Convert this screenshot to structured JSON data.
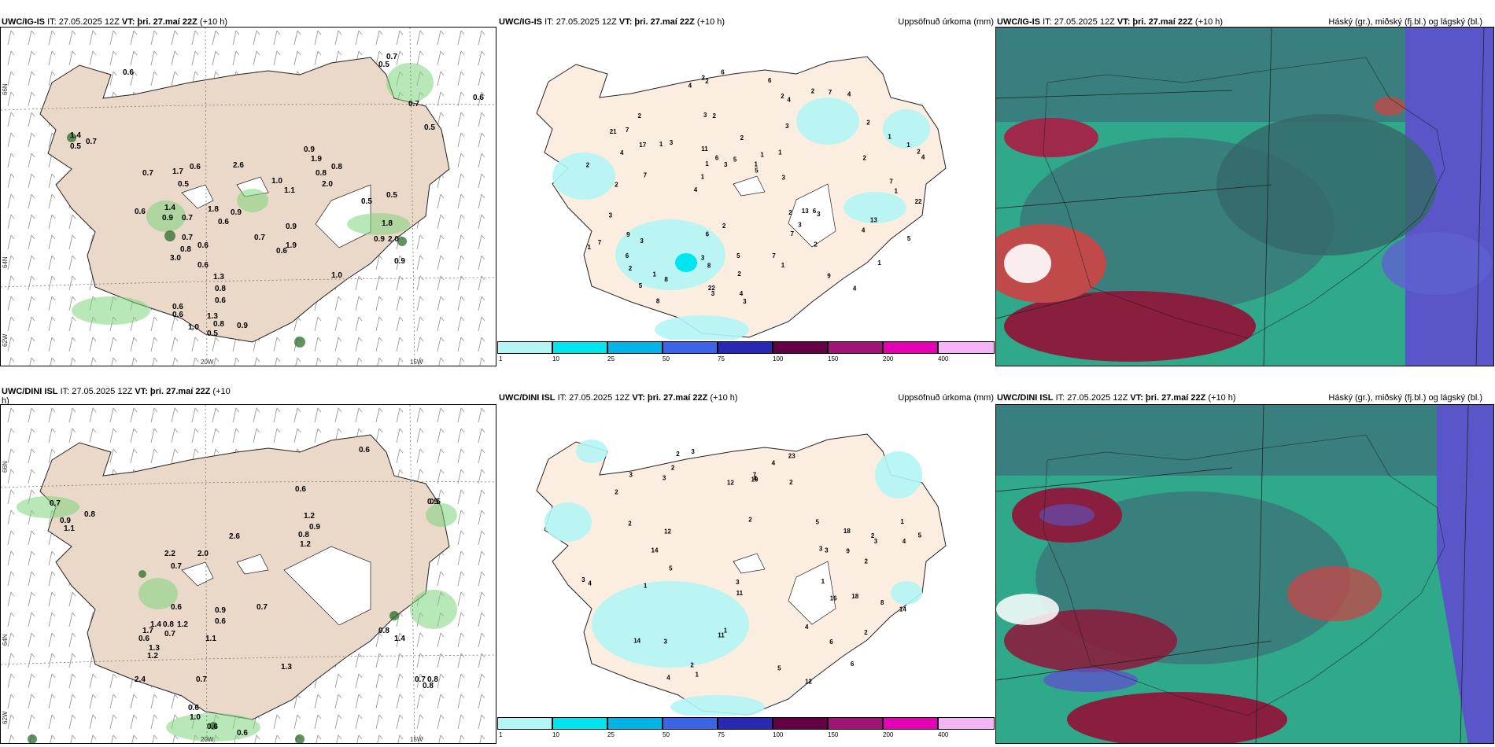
{
  "panels": {
    "p1": {
      "model": "UWC/IG-IS",
      "it": "IT: 27.05.2025 12Z",
      "vt_label": "VT:",
      "vt": "þri. 27.maí 22Z",
      "lead": "(+10 h)",
      "right": ""
    },
    "p2": {
      "model": "UWC/IG-IS",
      "it": "IT: 27.05.2025 12Z",
      "vt_label": "VT:",
      "vt": "þri. 27.maí 22Z",
      "lead": "(+10 h)",
      "right": "Uppsöfnuð úrkoma (mm)"
    },
    "p3": {
      "model": "UWC/IG-IS",
      "it": "IT: 27.05.2025 12Z",
      "vt_label": "VT:",
      "vt": "þri. 27.maí 22Z",
      "lead": "(+10 h)",
      "right": "Háský (gr.), miðský (fj.bl.) og lágský (bl.)"
    },
    "p4": {
      "model": "UWC/DINI ISL",
      "it": "IT: 27.05.2025 12Z",
      "vt_label": "VT:",
      "vt": "þri. 27.maí 22Z",
      "lead": "(+10",
      "lead2": "h)",
      "right": ""
    },
    "p5": {
      "model": "UWC/DINI ISL",
      "it": "IT: 27.05.2025 12Z",
      "vt_label": "VT:",
      "vt": "þri. 27.maí 22Z",
      "lead": "(+10 h)",
      "right": "Uppsöfnuð úrkoma (mm)"
    },
    "p6": {
      "model": "UWC/DINI ISL",
      "it": "IT: 27.05.2025 12Z",
      "vt_label": "VT:",
      "vt": "þri. 27.maí 22Z",
      "lead": "(+10 h)",
      "right": "Háský (gr.), miðský (fj.bl.) og lágský (bl.)"
    }
  },
  "axes": {
    "lon1": "20W",
    "lon2": "15W",
    "lat_top": "66N",
    "lat_mid": "64N",
    "lat_bot": "62W"
  },
  "colorbar": {
    "ticks": [
      "1",
      "10",
      "25",
      "50",
      "75",
      "100",
      "150",
      "200",
      "400"
    ],
    "colors": [
      "#b3f5f5",
      "#00e6f0",
      "#00b4e6",
      "#3c64e6",
      "#2828b4",
      "#640046",
      "#a01478",
      "#e600b4",
      "#f5b4f5"
    ]
  },
  "wind_labels_top": [
    "0.6",
    "1.4",
    "0.5",
    "0.7",
    "0.7",
    "1.7",
    "0.5",
    "2.6",
    "0.7",
    "0.6",
    "0.7",
    "0.9",
    "1.9",
    "0.9",
    "0.8",
    "1.0",
    "0.9",
    "1.1",
    "0.5",
    "0.6",
    "1.3",
    "0.6",
    "1.0",
    "0.6",
    "0.8",
    "0.6",
    "0.5",
    "0.7",
    "0.5",
    "0.7",
    "0.5",
    "0.6",
    "0.7",
    "0.6",
    "0.9",
    "0.8",
    "1.8",
    "0.6",
    "1.8",
    "0.9",
    "2.0",
    "1.9",
    "0.9",
    "2.0",
    "0.8",
    "0.6",
    "0.5",
    "1.0",
    "1.4",
    "0.8",
    "1.3",
    "0.9",
    "0.6",
    "3.0"
  ],
  "wind_labels_bot": [
    "0.6",
    "0.7",
    "0.9",
    "1.1",
    "0.8",
    "0.5",
    "2.2",
    "2.0",
    "0.7",
    "2.6",
    "0.6",
    "1.2",
    "0.9",
    "0.8",
    "1.2",
    "0.6",
    "1.4",
    "0.6",
    "1.3",
    "1.7",
    "0.8",
    "1.2",
    "0.7",
    "0.9",
    "1.1",
    "0.6",
    "1.2",
    "0.7",
    "2.4",
    "1.4",
    "0.8",
    "0.6",
    "1.0",
    "0.6",
    "0.7",
    "0.6",
    "1.3",
    "0.7",
    "0.8",
    "0.8",
    "0.5"
  ],
  "precip_labels_top": [
    "2",
    "4",
    "3",
    "3",
    "2",
    "7",
    "3",
    "2",
    "2",
    "1",
    "3",
    "2",
    "4",
    "2",
    "1",
    "1",
    "3",
    "1",
    "2",
    "2",
    "3",
    "4",
    "1",
    "6",
    "3",
    "1",
    "4",
    "7",
    "5",
    "1",
    "1",
    "8",
    "5",
    "1",
    "2",
    "3",
    "1",
    "6",
    "5",
    "4",
    "6",
    "7",
    "7",
    "7",
    "6",
    "4",
    "6",
    "5",
    "6",
    "8",
    "13",
    "17",
    "21",
    "22",
    "11",
    "2",
    "5",
    "3",
    "13",
    "22",
    "2",
    "2",
    "9",
    "4",
    "7",
    "2",
    "1",
    "1",
    "2",
    "3",
    "4",
    "3",
    "2",
    "4",
    "2",
    "8",
    "7",
    "2",
    "3",
    "9",
    "1"
  ],
  "precip_labels_bot": [
    "2",
    "1",
    "2",
    "2",
    "2",
    "3",
    "2",
    "4",
    "2",
    "1",
    "2",
    "3",
    "1",
    "3",
    "3",
    "4",
    "5",
    "3",
    "2",
    "11",
    "4",
    "2",
    "5",
    "1",
    "6",
    "4",
    "3",
    "8",
    "6",
    "3",
    "12",
    "5",
    "18",
    "9",
    "10",
    "14",
    "14",
    "16",
    "23",
    "12",
    "18",
    "14",
    "11",
    "4",
    "5",
    "4",
    "1",
    "2",
    "3",
    "12",
    "7",
    "3"
  ]
}
